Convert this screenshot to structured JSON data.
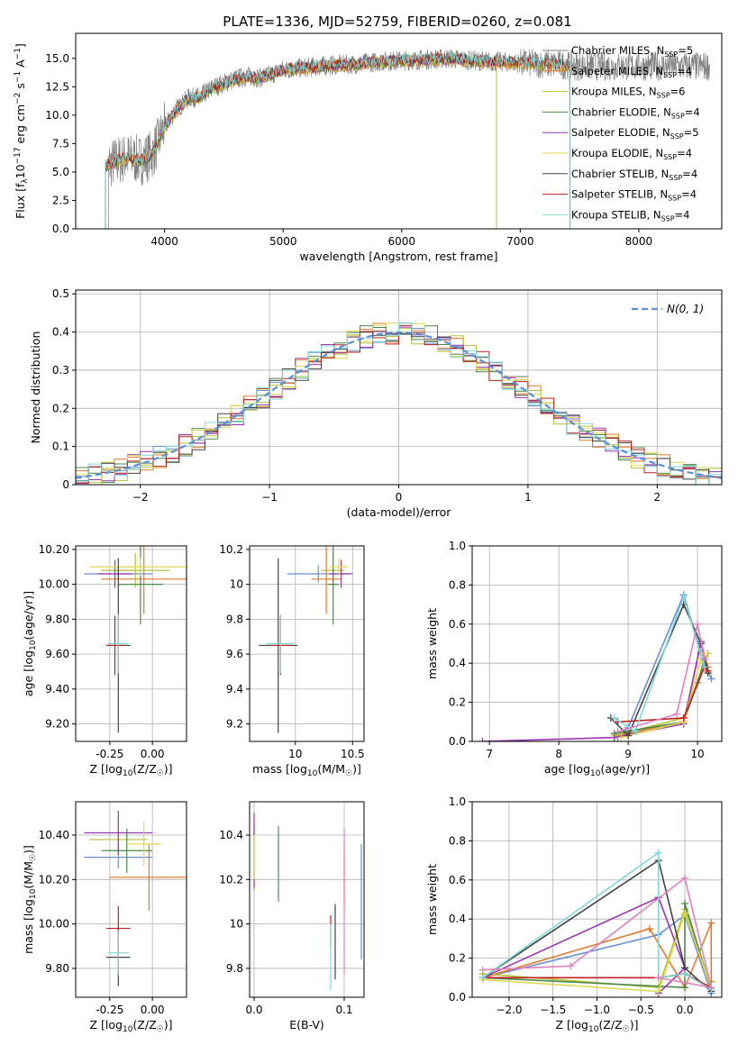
{
  "figure": {
    "title": "PLATE=1336, MJD=52759, FIBERID=0260, z=0.081"
  },
  "colors": {
    "Chabrier MILES": "#6a8fd6",
    "Salpeter MILES": "#e07b2b",
    "Kroupa MILES": "#b5c235",
    "Chabrier ELODIE": "#4a8a4a",
    "Salpeter ELODIE": "#9a35b0",
    "Kroupa ELODIE": "#e0d850",
    "Chabrier STELIB": "#444444",
    "Salpeter STELIB": "#c02020",
    "Kroupa STELIB": "#7fd8d8",
    "data": "#808080"
  },
  "chart_data": [
    {
      "id": "spectrum",
      "type": "line",
      "xlabel": "wavelength [Angstrom, rest frame]",
      "ylabel": "Flux [f_λ 10^-17 erg cm^-2 s^-1 A^-1]",
      "xlim": [
        3250,
        8700
      ],
      "ylim": [
        0,
        17.2
      ],
      "xticks": [
        4000,
        5000,
        6000,
        7000,
        8000
      ],
      "yticks": [
        0.0,
        2.5,
        5.0,
        7.5,
        10.0,
        12.5,
        15.0
      ],
      "grid": false,
      "legend_position": "top-right",
      "legend": [
        {
          "label": "Chabrier MILES, N",
          "sub": "SSP",
          "suffix": "=5",
          "key": "data"
        },
        {
          "label": "Salpeter MILES, N",
          "sub": "SSP",
          "suffix": "=4",
          "key": "Salpeter MILES"
        },
        {
          "label": "Kroupa MILES, N",
          "sub": "SSP",
          "suffix": "=6",
          "key": "Kroupa MILES"
        },
        {
          "label": "Chabrier ELODIE, N",
          "sub": "SSP",
          "suffix": "=4",
          "key": "Chabrier ELODIE"
        },
        {
          "label": "Salpeter ELODIE, N",
          "sub": "SSP",
          "suffix": "=5",
          "key": "Salpeter ELODIE"
        },
        {
          "label": "Kroupa ELODIE, N",
          "sub": "SSP",
          "suffix": "=4",
          "key": "Kroupa ELODIE"
        },
        {
          "label": "Chabrier STELIB, N",
          "sub": "SSP",
          "suffix": "=4",
          "key": "Chabrier STELIB"
        },
        {
          "label": "Salpeter STELIB, N",
          "sub": "SSP",
          "suffix": "=4",
          "key": "Salpeter STELIB"
        },
        {
          "label": "Kroupa STELIB, N",
          "sub": "SSP",
          "suffix": "=4",
          "key": "Kroupa STELIB"
        }
      ],
      "model_envelope": [
        [
          3500,
          5.5
        ],
        [
          3600,
          6.0
        ],
        [
          3700,
          6.3
        ],
        [
          3800,
          6.0
        ],
        [
          3900,
          6.6
        ],
        [
          4000,
          9.0
        ],
        [
          4100,
          10.5
        ],
        [
          4200,
          11.5
        ],
        [
          4300,
          11.6
        ],
        [
          4400,
          12.4
        ],
        [
          4500,
          12.8
        ],
        [
          4600,
          13.2
        ],
        [
          4700,
          13.4
        ],
        [
          4800,
          13.3
        ],
        [
          4900,
          13.6
        ],
        [
          5000,
          14.0
        ],
        [
          5200,
          14.2
        ],
        [
          5400,
          14.4
        ],
        [
          5600,
          14.5
        ],
        [
          5800,
          14.7
        ],
        [
          6000,
          14.8
        ],
        [
          6200,
          14.9
        ],
        [
          6400,
          15.0
        ],
        [
          6600,
          14.8
        ],
        [
          6800,
          14.7
        ],
        [
          7000,
          14.6
        ],
        [
          7200,
          14.5
        ],
        [
          7400,
          14.4
        ]
      ]
    },
    {
      "id": "residuals",
      "type": "histogram",
      "xlabel": "(data-model)/error",
      "ylabel": "Normed distribution",
      "xlim": [
        -2.5,
        2.5
      ],
      "ylim": [
        0,
        0.51
      ],
      "xticks": [
        -2,
        -1,
        0,
        1,
        2
      ],
      "yticks": [
        0.0,
        0.1,
        0.2,
        0.3,
        0.4,
        0.5
      ],
      "grid": true,
      "legend_position": "top-right",
      "legend": [
        {
          "label": "N(0, 1)",
          "style": "dashed"
        }
      ],
      "bin_width": 0.1,
      "reference_curve": "standard normal, mean 0, sigma 1"
    },
    {
      "id": "age-vs-Z",
      "type": "errorbar",
      "xlabel": "Z [log10(Z/Z☉)]",
      "ylabel": "age [log10(age/yr)]",
      "xlim": [
        -0.45,
        0.2
      ],
      "ylim": [
        9.1,
        10.22
      ],
      "xticks": [
        -0.25,
        0.0
      ],
      "yticks": [
        9.2,
        9.4,
        9.6,
        9.8,
        10.0,
        10.2
      ],
      "grid": true,
      "points": [
        {
          "key": "Chabrier MILES",
          "x": -0.2,
          "y": 10.06,
          "xerr": 0.2,
          "yerr": 0.05
        },
        {
          "key": "Salpeter MILES",
          "x": -0.05,
          "y": 10.03,
          "xerr": 0.25,
          "yerr": 0.2
        },
        {
          "key": "Kroupa MILES",
          "x": -0.1,
          "y": 10.08,
          "xerr": 0.2,
          "yerr": 0.1
        },
        {
          "key": "Chabrier ELODIE",
          "x": -0.07,
          "y": 10.0,
          "xerr": 0.13,
          "yerr": 0.23
        },
        {
          "key": "Salpeter ELODIE",
          "x": -0.22,
          "y": 10.06,
          "xerr": 0.1,
          "yerr": 0.08
        },
        {
          "key": "Kroupa ELODIE",
          "x": -0.07,
          "y": 10.1,
          "xerr": 0.3,
          "yerr": 0.05
        },
        {
          "key": "Chabrier STELIB",
          "x": -0.2,
          "y": 9.65,
          "xerr": 0.07,
          "yerr": 0.5
        },
        {
          "key": "Salpeter STELIB",
          "x": -0.22,
          "y": 9.65,
          "xerr": 0.05,
          "yerr": 0.17
        },
        {
          "key": "Kroupa STELIB",
          "x": -0.2,
          "y": 9.66,
          "xerr": 0.06,
          "yerr": 0.17
        }
      ]
    },
    {
      "id": "age-vs-mass",
      "type": "errorbar",
      "xlabel": "mass [log10(M/M☉)]",
      "ylabel": "",
      "xlim": [
        9.6,
        10.6
      ],
      "ylim": [
        9.1,
        10.22
      ],
      "xticks": [
        10.0,
        10.5
      ],
      "yticks": [
        9.2,
        9.4,
        9.6,
        9.8,
        10.0,
        10.2
      ],
      "grid": true,
      "points": [
        {
          "key": "Chabrier MILES",
          "x": 10.2,
          "y": 10.06,
          "xerr": 0.27,
          "yerr": 0.05
        },
        {
          "key": "Salpeter MILES",
          "x": 10.27,
          "y": 10.03,
          "xerr": 0.13,
          "yerr": 0.2
        },
        {
          "key": "Kroupa MILES",
          "x": 10.33,
          "y": 10.08,
          "xerr": 0.1,
          "yerr": 0.1
        },
        {
          "key": "Chabrier ELODIE",
          "x": 10.33,
          "y": 10.0,
          "xerr": 0.05,
          "yerr": 0.23
        },
        {
          "key": "Salpeter ELODIE",
          "x": 10.4,
          "y": 10.06,
          "xerr": 0.1,
          "yerr": 0.08
        },
        {
          "key": "Kroupa ELODIE",
          "x": 10.38,
          "y": 10.1,
          "xerr": 0.08,
          "yerr": 0.05
        },
        {
          "key": "Chabrier STELIB",
          "x": 9.85,
          "y": 9.65,
          "xerr": 0.17,
          "yerr": 0.5
        },
        {
          "key": "Salpeter STELIB",
          "x": 9.87,
          "y": 9.65,
          "xerr": 0.1,
          "yerr": 0.17
        },
        {
          "key": "Kroupa STELIB",
          "x": 9.87,
          "y": 9.66,
          "xerr": 0.12,
          "yerr": 0.17
        }
      ]
    },
    {
      "id": "weight-vs-age",
      "type": "line",
      "xlabel": "age [log10(age/yr)]",
      "ylabel": "mass weight",
      "xlim": [
        6.75,
        10.35
      ],
      "ylim": [
        0,
        1.0
      ],
      "xticks": [
        7,
        8,
        9,
        10
      ],
      "yticks": [
        0.0,
        0.2,
        0.4,
        0.6,
        0.8,
        1.0
      ],
      "grid": true,
      "series": [
        {
          "key": "Chabrier MILES",
          "points": [
            [
              8.85,
              0.02
            ],
            [
              9.0,
              0.07
            ],
            [
              9.8,
              0.75
            ],
            [
              10.05,
              0.45
            ],
            [
              10.2,
              0.32
            ]
          ]
        },
        {
          "key": "Salpeter MILES",
          "points": [
            [
              8.85,
              0.03
            ],
            [
              9.8,
              0.1
            ],
            [
              10.05,
              0.5
            ],
            [
              10.15,
              0.38
            ]
          ]
        },
        {
          "key": "Kroupa MILES",
          "points": [
            [
              8.8,
              0.03
            ],
            [
              9.8,
              0.12
            ],
            [
              10.1,
              0.4
            ],
            [
              10.15,
              0.45
            ]
          ]
        },
        {
          "key": "Chabrier ELODIE",
          "points": [
            [
              8.8,
              0.04
            ],
            [
              9.8,
              0.1
            ],
            [
              10.0,
              0.3
            ],
            [
              10.1,
              0.42
            ]
          ]
        },
        {
          "key": "Salpeter ELODIE",
          "points": [
            [
              6.9,
              0.0
            ],
            [
              8.8,
              0.02
            ],
            [
              9.8,
              0.09
            ],
            [
              10.05,
              0.51
            ],
            [
              10.15,
              0.36
            ]
          ]
        },
        {
          "key": "Kroupa ELODIE",
          "points": [
            [
              8.9,
              0.02
            ],
            [
              9.8,
              0.1
            ],
            [
              10.05,
              0.42
            ],
            [
              10.1,
              0.45
            ]
          ]
        },
        {
          "key": "Chabrier STELIB",
          "points": [
            [
              8.75,
              0.12
            ],
            [
              9.0,
              0.03
            ],
            [
              9.8,
              0.7
            ],
            [
              10.05,
              0.5
            ],
            [
              10.15,
              0.35
            ]
          ]
        },
        {
          "key": "Salpeter STELIB",
          "points": [
            [
              8.85,
              0.1
            ],
            [
              9.8,
              0.12
            ],
            [
              10.1,
              0.38
            ],
            [
              10.15,
              0.36
            ]
          ]
        },
        {
          "key": "Kroupa STELIB",
          "points": [
            [
              8.8,
              0.12
            ],
            [
              9.1,
              0.05
            ],
            [
              9.8,
              0.74
            ],
            [
              10.1,
              0.38
            ]
          ]
        },
        {
          "key": "pink",
          "points": [
            [
              8.85,
              0.05
            ],
            [
              9.7,
              0.14
            ],
            [
              10.0,
              0.6
            ],
            [
              10.1,
              0.42
            ]
          ]
        }
      ]
    },
    {
      "id": "mass-vs-Z",
      "type": "errorbar",
      "xlabel": "Z [log10(Z/Z☉)]",
      "ylabel": "mass [log10(M/M☉)]",
      "xlim": [
        -0.45,
        0.2
      ],
      "ylim": [
        9.67,
        10.55
      ],
      "xticks": [
        -0.25,
        0.0
      ],
      "yticks": [
        9.8,
        10.0,
        10.2,
        10.4
      ],
      "grid": true,
      "points": [
        {
          "key": "Chabrier MILES",
          "x": -0.2,
          "y": 10.3,
          "xerr": 0.2,
          "yerr": 0.05
        },
        {
          "key": "Salpeter MILES",
          "x": -0.02,
          "y": 10.21,
          "xerr": 0.23,
          "yerr": 0.15
        },
        {
          "key": "Kroupa MILES",
          "x": -0.2,
          "y": 10.38,
          "xerr": 0.17,
          "yerr": 0.08
        },
        {
          "key": "Chabrier ELODIE",
          "x": -0.15,
          "y": 10.33,
          "xerr": 0.15,
          "yerr": 0.1
        },
        {
          "key": "Salpeter ELODIE",
          "x": -0.2,
          "y": 10.41,
          "xerr": 0.2,
          "yerr": 0.1
        },
        {
          "key": "Kroupa ELODIE",
          "x": -0.05,
          "y": 10.36,
          "xerr": 0.1,
          "yerr": 0.1
        },
        {
          "key": "Chabrier STELIB",
          "x": -0.2,
          "y": 9.85,
          "xerr": 0.07,
          "yerr": 0.13
        },
        {
          "key": "Salpeter STELIB",
          "x": -0.2,
          "y": 9.98,
          "xerr": 0.07,
          "yerr": 0.1
        },
        {
          "key": "Kroupa STELIB",
          "x": -0.2,
          "y": 9.87,
          "xerr": 0.06,
          "yerr": 0.1
        }
      ]
    },
    {
      "id": "mass-vs-EBV",
      "type": "errorbar",
      "xlabel": "E(B-V)",
      "ylabel": "",
      "xlim": [
        -0.005,
        0.122
      ],
      "ylim": [
        9.67,
        10.55
      ],
      "xticks": [
        0.0,
        0.1
      ],
      "yticks": [
        9.8,
        10.0,
        10.2,
        10.4
      ],
      "grid": true,
      "points": [
        {
          "key": "Chabrier MILES",
          "x": 0.119,
          "y": 10.1,
          "xerr": 0,
          "yerr": 0.26
        },
        {
          "key": "Salpeter MILES",
          "x": 0.1,
          "y": 10.21,
          "xerr": 0,
          "yerr": 0.12
        },
        {
          "key": "Kroupa MILES",
          "x": 0.0,
          "y": 10.3,
          "xerr": 0,
          "yerr": 0.15
        },
        {
          "key": "Chabrier ELODIE",
          "x": 0.027,
          "y": 10.27,
          "xerr": 0,
          "yerr": 0.17
        },
        {
          "key": "Salpeter ELODIE",
          "x": 0.0,
          "y": 10.33,
          "xerr": 0,
          "yerr": 0.17
        },
        {
          "key": "Kroupa ELODIE",
          "x": 0.0,
          "y": 10.3,
          "xerr": 0,
          "yerr": 0.1
        },
        {
          "key": "Chabrier STELIB",
          "x": 0.09,
          "y": 9.92,
          "xerr": 0,
          "yerr": 0.17
        },
        {
          "key": "Salpeter STELIB",
          "x": 0.085,
          "y": 9.97,
          "xerr": 0,
          "yerr": 0.07
        },
        {
          "key": "Kroupa STELIB",
          "x": 0.085,
          "y": 9.85,
          "xerr": 0,
          "yerr": 0.15
        },
        {
          "key": "pink",
          "x": 0.1,
          "y": 10.1,
          "xerr": 0,
          "yerr": 0.33
        }
      ]
    },
    {
      "id": "weight-vs-Z",
      "type": "line",
      "xlabel": "Z [log10(Z/Z☉)]",
      "ylabel": "mass weight",
      "xlim": [
        -2.42,
        0.42
      ],
      "ylim": [
        0,
        1.0
      ],
      "xticks": [
        -2.0,
        -1.5,
        -1.0,
        -0.5,
        0.0
      ],
      "yticks": [
        0.0,
        0.2,
        0.4,
        0.6,
        0.8,
        1.0
      ],
      "grid": true,
      "series": [
        {
          "key": "Chabrier MILES",
          "points": [
            [
              -2.3,
              0.1
            ],
            [
              -0.3,
              0.32
            ],
            [
              0.0,
              0.42
            ],
            [
              0.3,
              0.02
            ]
          ]
        },
        {
          "key": "Salpeter MILES",
          "points": [
            [
              -2.3,
              0.1
            ],
            [
              -0.4,
              0.35
            ],
            [
              0.0,
              0.05
            ],
            [
              0.3,
              0.38
            ],
            [
              0.3,
              0.08
            ]
          ]
        },
        {
          "key": "Kroupa MILES",
          "points": [
            [
              -2.3,
              0.12
            ],
            [
              -0.3,
              0.05
            ],
            [
              0.0,
              0.45
            ],
            [
              0.3,
              0.03
            ]
          ]
        },
        {
          "key": "Chabrier ELODIE",
          "points": [
            [
              -2.3,
              0.1
            ],
            [
              0.0,
              0.05
            ],
            [
              0.0,
              0.48
            ],
            [
              0.3,
              0.04
            ]
          ]
        },
        {
          "key": "Salpeter ELODIE",
          "points": [
            [
              -2.3,
              0.1
            ],
            [
              -0.3,
              0.51
            ],
            [
              0.0,
              0.15
            ],
            [
              -0.3,
              0.02
            ]
          ]
        },
        {
          "key": "Kroupa ELODIE",
          "points": [
            [
              -2.3,
              0.09
            ],
            [
              -0.3,
              0.03
            ],
            [
              0.0,
              0.43
            ],
            [
              0.3,
              0.05
            ]
          ]
        },
        {
          "key": "Chabrier STELIB",
          "points": [
            [
              -2.3,
              0.1
            ],
            [
              -0.3,
              0.7
            ],
            [
              0.0,
              0.15
            ],
            [
              0.3,
              0.03
            ]
          ]
        },
        {
          "key": "Salpeter STELIB",
          "points": [
            [
              -2.3,
              0.1
            ],
            [
              -0.3,
              0.1
            ],
            [
              0.0,
              0.12
            ],
            [
              0.3,
              0.05
            ]
          ]
        },
        {
          "key": "Kroupa STELIB",
          "points": [
            [
              -2.3,
              0.1
            ],
            [
              -0.3,
              0.74
            ],
            [
              -0.3,
              0.1
            ],
            [
              0.0,
              0.12
            ],
            [
              0.3,
              0.04
            ]
          ]
        },
        {
          "key": "pink",
          "points": [
            [
              -2.3,
              0.14
            ],
            [
              -1.3,
              0.16
            ],
            [
              0.0,
              0.61
            ],
            [
              0.3,
              0.05
            ],
            [
              -0.3,
              0.1
            ]
          ]
        }
      ]
    }
  ]
}
